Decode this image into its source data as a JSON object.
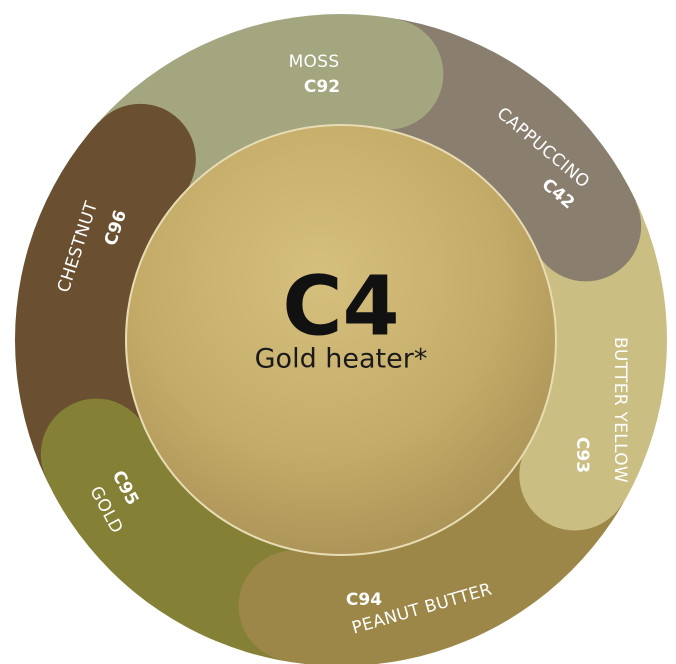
{
  "center": {
    "code": "C4",
    "label": "Gold heater*"
  },
  "segments": [
    {
      "name": "MOSS",
      "code": "C92",
      "color": "#a3a67f"
    },
    {
      "name": "CAPPUCCINO",
      "code": "C42",
      "color": "#8a7e6f"
    },
    {
      "name": "BUTTER YELLOW",
      "code": "C93",
      "color": "#cbbe82"
    },
    {
      "name": "PEANUT BUTTER",
      "code": "C94",
      "color": "#9c8748"
    },
    {
      "name": "GOLD",
      "code": "C95",
      "color": "#848036"
    },
    {
      "name": "CHESTNUT",
      "code": "C96",
      "color": "#6a5030"
    }
  ]
}
